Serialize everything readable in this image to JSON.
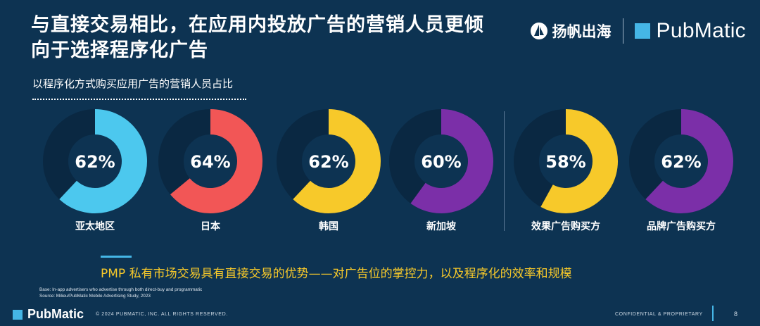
{
  "title": "与直接交易相比，在应用内投放广告的营销人员更倾向于选择程序化广告",
  "brand_yangfan": "扬帆出海",
  "brand_pubmatic": "PubMatic",
  "chart_data": {
    "type": "pie",
    "subtitle": "以程序化方式购买应用广告的营销人员占比",
    "categories": [
      "亚太地区",
      "日本",
      "韩国",
      "新加坡",
      "效果广告购买方",
      "品牌广告购买方"
    ],
    "values": [
      62,
      64,
      62,
      60,
      58,
      62
    ],
    "value_labels": [
      "62%",
      "64%",
      "62%",
      "60%",
      "58%",
      "62%"
    ],
    "colors": [
      "#4cc8ee",
      "#f25656",
      "#f7c92a",
      "#7b2fa8",
      "#f7c92a",
      "#7b2fa8"
    ],
    "track_color": "#0a2842",
    "ylim": [
      0,
      100
    ]
  },
  "callout": "PMP 私有市场交易具有直接交易的优势——对广告位的掌控力，以及程序化的效率和规模",
  "note_base": "Base: In-app advertisers who advertise through both direct-buy and programmatic",
  "note_source": "Source: Milieu/PubMatic Mobile Advertising Study, 2023",
  "footer": {
    "logo": "PubMatic",
    "copyright": "© 2024 PUBMATIC, INC. ALL RIGHTS RESERVED.",
    "confidential": "CONFIDENTIAL & PROPRIETARY",
    "page": "8"
  }
}
